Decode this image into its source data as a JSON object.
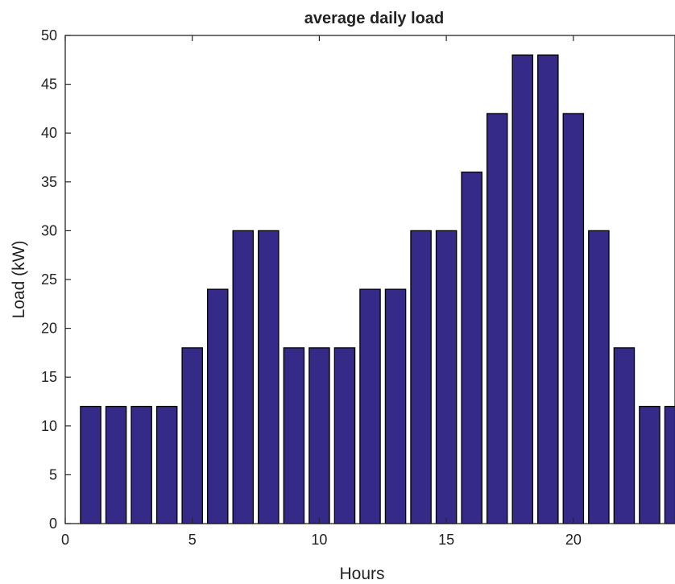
{
  "chart_data": {
    "type": "bar",
    "title": "average daily load",
    "xlabel": "Hours",
    "ylabel": "Load (kW)",
    "x": [
      1,
      2,
      3,
      4,
      5,
      6,
      7,
      8,
      9,
      10,
      11,
      12,
      13,
      14,
      15,
      16,
      17,
      18,
      19,
      20,
      21,
      22,
      23,
      24
    ],
    "values": [
      12,
      12,
      12,
      12,
      18,
      24,
      30,
      30,
      18,
      18,
      18,
      24,
      24,
      30,
      30,
      36,
      42,
      48,
      48,
      42,
      30,
      18,
      12,
      12
    ],
    "xlim": [
      0,
      24
    ],
    "ylim": [
      0,
      50
    ],
    "xticks": [
      0,
      5,
      10,
      15,
      20
    ],
    "yticks": [
      0,
      5,
      10,
      15,
      20,
      25,
      30,
      35,
      40,
      45,
      50
    ],
    "xtick_labels": [
      "0",
      "5",
      "10",
      "15",
      "20"
    ],
    "ytick_labels": [
      "0",
      "5",
      "10",
      "15",
      "20",
      "25",
      "30",
      "35",
      "40",
      "45",
      "50"
    ],
    "bar_color": "#352A87",
    "edge_color": "#000000",
    "grid": false,
    "legend": "none"
  }
}
